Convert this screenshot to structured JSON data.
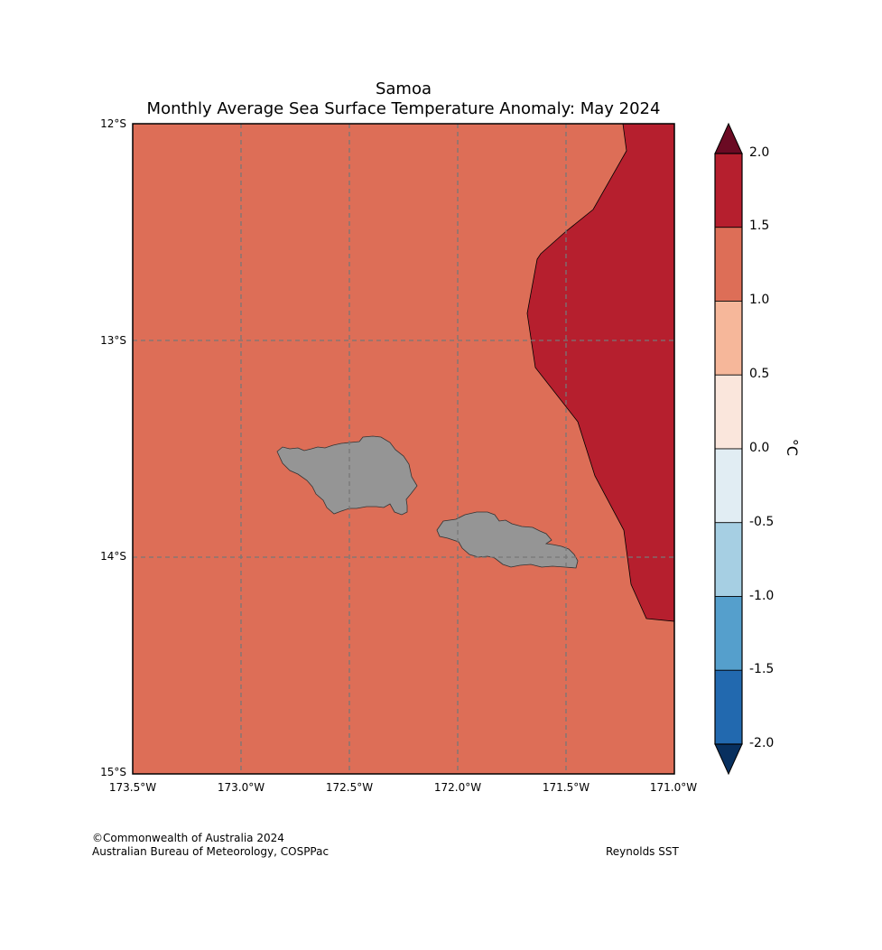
{
  "title": "Samoa",
  "subtitle": "Monthly Average Sea Surface Temperature Anomaly: May 2024",
  "lat_labels": [
    "12°S",
    "13°S",
    "14°S",
    "15°S"
  ],
  "lon_labels": [
    "173.5°W",
    "173.0°W",
    "172.5°W",
    "172.0°W",
    "171.5°W",
    "171.0°W"
  ],
  "colorbar": {
    "unit": "°C",
    "labels": [
      "2.0",
      "1.5",
      "1.0",
      "0.5",
      "0.0",
      "-0.5",
      "-1.0",
      "-1.5",
      "-2.0"
    ],
    "colors": [
      "#b61f2e",
      "#dd6e57",
      "#f6b79a",
      "#fae6dc",
      "#e1edf3",
      "#a6cfe3",
      "#559fcc",
      "#2269af"
    ],
    "over_color": "#6b0a23",
    "under_color": "#08305f"
  },
  "map": {
    "background_anomaly_color": "#dd6e57",
    "warm_region_color": "#b61f2e",
    "land_color": "#959595",
    "grid_color": "#777777",
    "lon_range": [
      -173.5,
      -171.0
    ],
    "lat_range": [
      -15.0,
      -12.0
    ]
  },
  "footer": {
    "copyright": "©Commonwealth of Australia 2024",
    "org": "Australian Bureau of Meteorology, COSPPac",
    "source": "Reynolds SST"
  }
}
